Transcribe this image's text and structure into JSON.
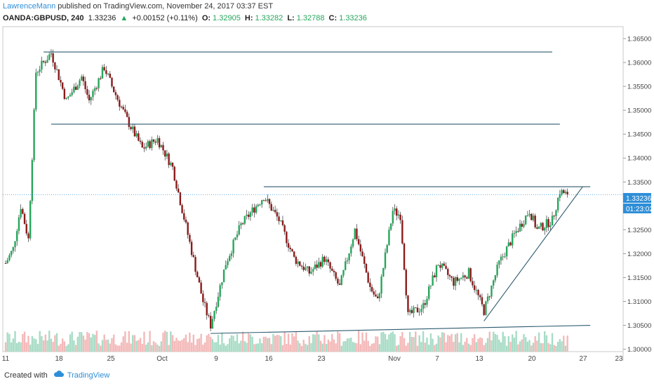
{
  "header": {
    "author": "LawrenceMann",
    "published_text": "published on TradingView.com, November 24, 2017 03:37 EST"
  },
  "symbol_bar": {
    "symbol": "OANDA:GBPUSD, 240",
    "last": "1.33236",
    "arrow": "▲",
    "change": "+0.00152 (+0.11%)",
    "o_label": "O:",
    "o_value": "1.32905",
    "h_label": "H:",
    "h_value": "1.33282",
    "l_label": "L:",
    "l_value": "1.32788",
    "c_label": "C:",
    "c_value": "1.33236"
  },
  "price_badge": {
    "price": "1.33236",
    "countdown": "01:23:02"
  },
  "footer": {
    "created_with": "Created with",
    "brand": "TradingView"
  },
  "colors": {
    "up": "#26a65b",
    "down": "#8b1a1a",
    "line": "#2c5a6e",
    "vol_up": "#a8dcc6",
    "vol_down": "#f4b9b9",
    "badge": "#2e8fd8"
  },
  "chart_data": {
    "type": "candlestick",
    "ylim": [
      1.2995,
      1.3675
    ],
    "y_ticks": [
      "1.36500",
      "1.36000",
      "1.35500",
      "1.35000",
      "1.34500",
      "1.34000",
      "1.33500",
      "1.33000",
      "1.32500",
      "1.32000",
      "1.31500",
      "1.31000",
      "1.30500",
      "1.30000"
    ],
    "x_ticks": [
      "11",
      "18",
      "25",
      "Oct",
      "9",
      "16",
      "23",
      "Nov",
      "7",
      "13",
      "20",
      "27",
      "23"
    ],
    "current_price": 1.33236,
    "trendlines": [
      {
        "from": [
          "Sep 16",
          1.3622
        ],
        "to": [
          "Nov 22",
          1.3622
        ]
      },
      {
        "from": [
          "Sep 17",
          1.3471
        ],
        "to": [
          "Nov 23",
          1.3471
        ]
      },
      {
        "from": [
          "Oct 15",
          1.334
        ],
        "to": [
          "Nov 27",
          1.334
        ]
      },
      {
        "from": [
          "Oct 8",
          1.3033
        ],
        "to": [
          "Nov 27",
          1.305
        ]
      },
      {
        "from": [
          "Nov 13",
          1.3059
        ],
        "to": [
          "Nov 26",
          1.334
        ]
      }
    ],
    "path": [
      [
        "Sep 11",
        1.318
      ],
      [
        "Sep 12",
        1.321
      ],
      [
        "Sep 13",
        1.33
      ],
      [
        "Sep 14",
        1.323
      ],
      [
        "Sep 15",
        1.358
      ],
      [
        "Sep 17",
        1.362
      ],
      [
        "Sep 19",
        1.352
      ],
      [
        "Sep 21",
        1.357
      ],
      [
        "Sep 22",
        1.352
      ],
      [
        "Sep 24",
        1.359
      ],
      [
        "Sep 25",
        1.355
      ],
      [
        "Sep 27",
        1.348
      ],
      [
        "Sep 29",
        1.342
      ],
      [
        "Oct 1",
        1.344
      ],
      [
        "Oct 3",
        1.338
      ],
      [
        "Oct 5",
        1.324
      ],
      [
        "Oct 7",
        1.31
      ],
      [
        "Oct 8",
        1.305
      ],
      [
        "Oct 10",
        1.318
      ],
      [
        "Oct 12",
        1.326
      ],
      [
        "Oct 15",
        1.332
      ],
      [
        "Oct 17",
        1.327
      ],
      [
        "Oct 19",
        1.319
      ],
      [
        "Oct 21",
        1.316
      ],
      [
        "Oct 23",
        1.319
      ],
      [
        "Oct 25",
        1.313
      ],
      [
        "Oct 27",
        1.325
      ],
      [
        "Oct 29",
        1.313
      ],
      [
        "Oct 30",
        1.31
      ],
      [
        "Nov 1",
        1.329
      ],
      [
        "Nov 2",
        1.328
      ],
      [
        "Nov 3",
        1.307
      ],
      [
        "Nov 5",
        1.309
      ],
      [
        "Nov 7",
        1.318
      ],
      [
        "Nov 9",
        1.314
      ],
      [
        "Nov 11",
        1.316
      ],
      [
        "Nov 13",
        1.308
      ],
      [
        "Nov 15",
        1.318
      ],
      [
        "Nov 17",
        1.324
      ],
      [
        "Nov 19",
        1.329
      ],
      [
        "Nov 20",
        1.325
      ],
      [
        "Nov 22",
        1.327
      ],
      [
        "Nov 23",
        1.333
      ],
      [
        "Nov 24",
        1.33236
      ]
    ]
  }
}
